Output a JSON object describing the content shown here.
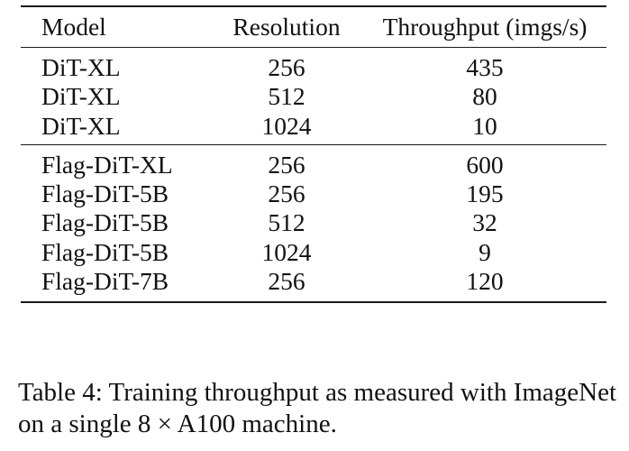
{
  "table": {
    "headers": [
      "Model",
      "Resolution",
      "Throughput (imgs/s)"
    ],
    "groups": [
      {
        "rows": [
          {
            "model": "DiT-XL",
            "resolution": "256",
            "throughput": "435"
          },
          {
            "model": "DiT-XL",
            "resolution": "512",
            "throughput": "80"
          },
          {
            "model": "DiT-XL",
            "resolution": "1024",
            "throughput": "10"
          }
        ]
      },
      {
        "rows": [
          {
            "model": "Flag-DiT-XL",
            "resolution": "256",
            "throughput": "600"
          },
          {
            "model": "Flag-DiT-5B",
            "resolution": "256",
            "throughput": "195"
          },
          {
            "model": "Flag-DiT-5B",
            "resolution": "512",
            "throughput": "32"
          },
          {
            "model": "Flag-DiT-5B",
            "resolution": "1024",
            "throughput": "9"
          },
          {
            "model": "Flag-DiT-7B",
            "resolution": "256",
            "throughput": "120"
          }
        ]
      }
    ]
  },
  "caption": {
    "label": "Table 4:",
    "text": "Training throughput as measured with ImageNet on a single 8 × A100 machine."
  }
}
